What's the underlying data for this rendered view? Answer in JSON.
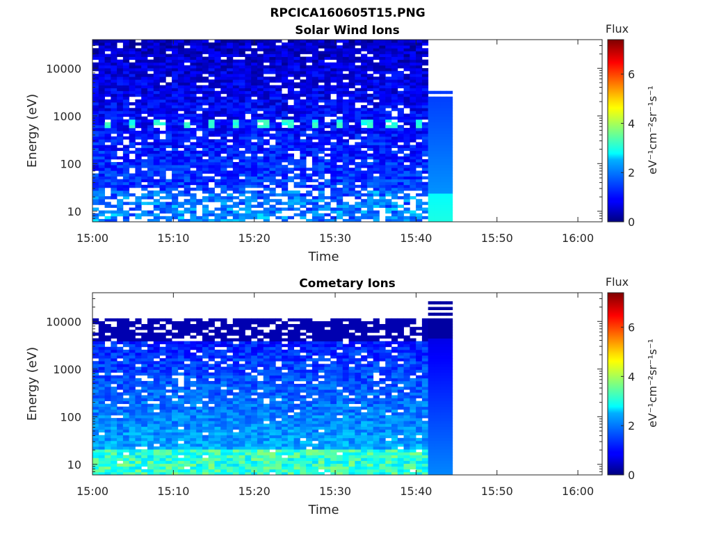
{
  "figure_title": "RPCICA160605T15.PNG",
  "chart_data": [
    {
      "type": "heatmap",
      "title": "Solar Wind Ions",
      "xlabel": "Time",
      "ylabel": "Energy (eV)",
      "x_ticks": [
        "15:00",
        "15:10",
        "15:20",
        "15:30",
        "15:40",
        "15:50",
        "16:00"
      ],
      "x_range": [
        "15:00",
        "16:03"
      ],
      "data_time_range": [
        "15:00",
        "15:44.5"
      ],
      "y_scale": "log",
      "y_ticks": [
        "10",
        "100",
        "1000",
        "10000"
      ],
      "y_range": [
        6,
        40000
      ],
      "colorbar": {
        "title": "Flux",
        "label": "eV⁻¹cm⁻²sr⁻¹s⁻¹",
        "ticks": [
          "0",
          "2",
          "4",
          "6"
        ],
        "range": [
          0,
          7.4
        ],
        "colormap": "jet"
      },
      "features": {
        "periodic_band_energy_eV": 700,
        "band_period_min": 3.2,
        "band_peak_flux": 3.3
      }
    },
    {
      "type": "heatmap",
      "title": "Cometary Ions",
      "xlabel": "Time",
      "ylabel": "Energy (eV)",
      "x_ticks": [
        "15:00",
        "15:10",
        "15:20",
        "15:30",
        "15:40",
        "15:50",
        "16:00"
      ],
      "x_range": [
        "15:00",
        "16:03"
      ],
      "data_time_range": [
        "15:00",
        "15:44.5"
      ],
      "y_scale": "log",
      "y_ticks": [
        "10",
        "100",
        "1000",
        "10000"
      ],
      "y_range": [
        6,
        40000
      ],
      "colorbar": {
        "title": "Flux",
        "label": "eV⁻¹cm⁻²sr⁻¹s⁻¹",
        "ticks": [
          "0",
          "2",
          "4",
          "6"
        ],
        "range": [
          0,
          7.4
        ],
        "colormap": "jet"
      },
      "features": {
        "low_energy_peak_flux": 3.8,
        "data_upper_energy_eV": 11000
      }
    }
  ]
}
